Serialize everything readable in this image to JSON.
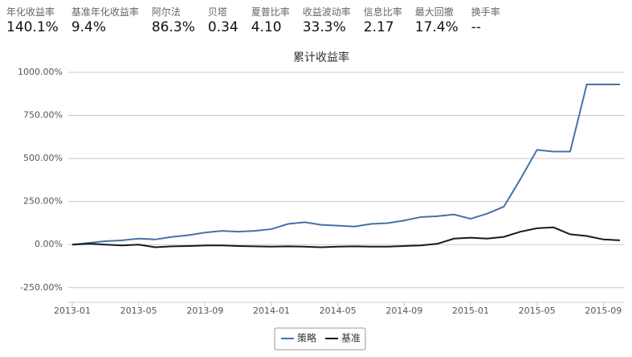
{
  "metrics": [
    {
      "label": "年化收益率",
      "value": "140.1%"
    },
    {
      "label": "基准年化收益率",
      "value": "9.4%"
    },
    {
      "label": "阿尔法",
      "value": "86.3%"
    },
    {
      "label": "贝塔",
      "value": "0.34"
    },
    {
      "label": "夏普比率",
      "value": "4.10"
    },
    {
      "label": "收益波动率",
      "value": "33.3%"
    },
    {
      "label": "信息比率",
      "value": "2.17"
    },
    {
      "label": "最大回撤",
      "value": "17.4%"
    },
    {
      "label": "换手率",
      "value": "--"
    }
  ],
  "chart_data": {
    "type": "line",
    "title": "累计收益率",
    "x": [
      "2013-01",
      "2013-02",
      "2013-03",
      "2013-04",
      "2013-05",
      "2013-06",
      "2013-07",
      "2013-08",
      "2013-09",
      "2013-10",
      "2013-11",
      "2013-12",
      "2014-01",
      "2014-02",
      "2014-03",
      "2014-04",
      "2014-05",
      "2014-06",
      "2014-07",
      "2014-08",
      "2014-09",
      "2014-10",
      "2014-11",
      "2014-12",
      "2015-01",
      "2015-02",
      "2015-03",
      "2015-04",
      "2015-05",
      "2015-06",
      "2015-07",
      "2015-08",
      "2015-09",
      "2015-10"
    ],
    "series": [
      {
        "name": "策略",
        "color": "#4572a7",
        "values": [
          0,
          10,
          20,
          25,
          35,
          30,
          45,
          55,
          70,
          80,
          75,
          80,
          90,
          120,
          130,
          115,
          110,
          105,
          120,
          125,
          140,
          160,
          165,
          175,
          150,
          180,
          220,
          380,
          550,
          540,
          540,
          930,
          930,
          930
        ]
      },
      {
        "name": "基准",
        "color": "#1a1a1a",
        "values": [
          0,
          5,
          0,
          -5,
          0,
          -15,
          -10,
          -8,
          -5,
          -5,
          -8,
          -10,
          -12,
          -10,
          -12,
          -15,
          -12,
          -10,
          -12,
          -12,
          -8,
          -5,
          5,
          35,
          40,
          35,
          45,
          75,
          95,
          100,
          60,
          50,
          30,
          25
        ]
      }
    ],
    "ylim": [
      -335,
      1000
    ],
    "yticks": [
      {
        "value": 1000,
        "label": "1000.00%"
      },
      {
        "value": 750,
        "label": "750.00%"
      },
      {
        "value": 500,
        "label": "500.00%"
      },
      {
        "value": 250,
        "label": "250.00%"
      },
      {
        "value": 0,
        "label": "0.00%"
      },
      {
        "value": -250,
        "label": "-250.00%"
      }
    ],
    "xticks": [
      "2013-01",
      "2013-05",
      "2013-09",
      "2014-01",
      "2014-05",
      "2014-09",
      "2015-01",
      "2015-05",
      "2015-09"
    ],
    "grid": true
  }
}
